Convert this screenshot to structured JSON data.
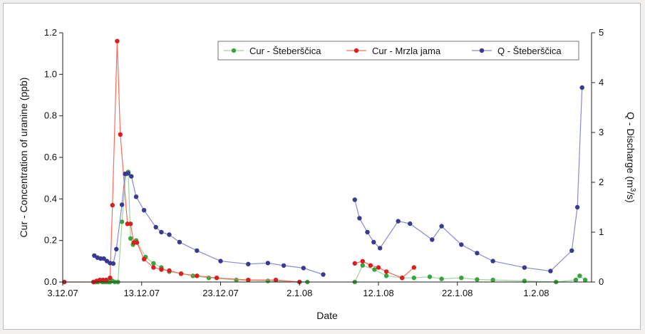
{
  "chart_data": {
    "type": "line",
    "title": "",
    "xlabel": "Date",
    "ylabel_left": "Cur - Concentration of uranine (ppb)",
    "ylabel_right_base": "Q - Discharge (m",
    "ylabel_right_sup": "3",
    "ylabel_right_tail": "/s)",
    "x_tick_labels": [
      "3.12.07",
      "13.12.07",
      "23.12.07",
      "2.1.08",
      "12.1.08",
      "22.1.08",
      "1.2.08"
    ],
    "x_tick_days": [
      0,
      10,
      20,
      30,
      40,
      50,
      60
    ],
    "x_start_date": "3.12.07",
    "xlim_days": [
      0,
      67
    ],
    "ylim_left": [
      0,
      1.2
    ],
    "y_left_ticks": [
      "0.0",
      "0.2",
      "0.4",
      "0.6",
      "0.8",
      "1.0",
      "1.2"
    ],
    "ylim_right": [
      0,
      5
    ],
    "y_right_ticks": [
      "0",
      "1",
      "2",
      "3",
      "4",
      "5"
    ],
    "grid": false,
    "legend_position": "top-right",
    "series": [
      {
        "name": "Cur - Šteberščica",
        "axis": "left",
        "color": "#3aa43a",
        "line_color": "#9ed49e",
        "marker": "circle",
        "segments": [
          [
            [
              3.9,
              0.0
            ],
            [
              4.2,
              0.0
            ],
            [
              4.5,
              0.0
            ],
            [
              5.0,
              0.0
            ],
            [
              5.2,
              0.0
            ],
            [
              5.5,
              0.0
            ],
            [
              5.8,
              0.0
            ],
            [
              6.0,
              0.0
            ],
            [
              6.3,
              0.005
            ],
            [
              6.6,
              0.0
            ],
            [
              7.0,
              0.0
            ],
            [
              7.5,
              0.29
            ],
            [
              8.0,
              0.52
            ],
            [
              8.3,
              0.53
            ],
            [
              8.6,
              0.21
            ],
            [
              8.9,
              0.18
            ],
            [
              9.3,
              0.2
            ],
            [
              10.5,
              0.12
            ],
            [
              11.5,
              0.09
            ],
            [
              12.5,
              0.07
            ],
            [
              13.5,
              0.05
            ],
            [
              15.0,
              0.04
            ],
            [
              16.5,
              0.03
            ],
            [
              18.5,
              0.02
            ],
            [
              22.0,
              0.01
            ],
            [
              26.0,
              0.005
            ],
            [
              31.0,
              0.0
            ]
          ],
          [
            [
              37.0,
              0.0
            ],
            [
              38.0,
              0.08
            ],
            [
              39.5,
              0.06
            ],
            [
              41.0,
              0.03
            ],
            [
              43.0,
              0.02
            ],
            [
              44.5,
              0.02
            ],
            [
              46.5,
              0.025
            ],
            [
              48.0,
              0.015
            ],
            [
              50.5,
              0.02
            ],
            [
              52.5,
              0.012
            ],
            [
              54.5,
              0.01
            ],
            [
              58.5,
              0.005
            ],
            [
              62.5,
              0.0
            ],
            [
              65.0,
              0.01
            ],
            [
              65.5,
              0.03
            ],
            [
              66.2,
              0.01
            ]
          ]
        ]
      },
      {
        "name": "Cur - Mrzla jama",
        "axis": "left",
        "color": "#d62020",
        "line_color": "#ff6a5a",
        "marker": "circle",
        "segments": [
          [
            [
              0.2,
              0.0
            ],
            [
              3.9,
              0.0
            ],
            [
              4.3,
              0.005
            ],
            [
              4.7,
              0.01
            ],
            [
              5.1,
              0.01
            ],
            [
              5.5,
              0.01
            ],
            [
              6.0,
              0.02
            ],
            [
              6.3,
              0.37
            ],
            [
              6.9,
              1.16
            ],
            [
              7.3,
              0.71
            ],
            [
              8.2,
              0.28
            ],
            [
              8.6,
              0.28
            ],
            [
              9.0,
              0.19
            ],
            [
              9.4,
              0.19
            ],
            [
              10.3,
              0.11
            ],
            [
              11.5,
              0.07
            ],
            [
              12.5,
              0.06
            ],
            [
              13.5,
              0.055
            ],
            [
              15.0,
              0.04
            ],
            [
              17.0,
              0.03
            ],
            [
              19.5,
              0.02
            ],
            [
              23.5,
              0.01
            ],
            [
              27.0,
              0.01
            ],
            [
              30.0,
              0.0
            ]
          ],
          [
            [
              37.0,
              0.09
            ],
            [
              38.0,
              0.1
            ],
            [
              39.0,
              0.08
            ],
            [
              40.0,
              0.07
            ],
            [
              41.0,
              0.05
            ],
            [
              43.0,
              0.02
            ],
            [
              44.5,
              0.07
            ]
          ]
        ]
      },
      {
        "name": "Q - Šteberščica",
        "axis": "right",
        "color": "#3a3a90",
        "line_color": "#8888d8",
        "marker": "circle",
        "segments": [
          [
            [
              4.0,
              0.53
            ],
            [
              4.4,
              0.49
            ],
            [
              4.8,
              0.47
            ],
            [
              5.2,
              0.47
            ],
            [
              5.6,
              0.42
            ],
            [
              6.0,
              0.38
            ],
            [
              6.4,
              0.37
            ],
            [
              6.8,
              0.66
            ],
            [
              7.5,
              1.55
            ],
            [
              7.9,
              2.17
            ],
            [
              8.3,
              2.18
            ],
            [
              8.7,
              2.12
            ],
            [
              9.3,
              1.71
            ],
            [
              10.3,
              1.44
            ],
            [
              11.8,
              1.1
            ],
            [
              12.5,
              1.0
            ],
            [
              13.5,
              0.95
            ],
            [
              14.8,
              0.8
            ],
            [
              17.0,
              0.63
            ],
            [
              20.0,
              0.42
            ],
            [
              23.5,
              0.36
            ],
            [
              26.0,
              0.38
            ],
            [
              28.0,
              0.33
            ],
            [
              30.5,
              0.28
            ],
            [
              33.0,
              0.15
            ]
          ],
          [
            [
              37.0,
              1.65
            ],
            [
              37.6,
              1.28
            ],
            [
              38.6,
              1.0
            ],
            [
              39.4,
              0.8
            ],
            [
              40.2,
              0.68
            ],
            [
              42.5,
              1.22
            ],
            [
              44.0,
              1.17
            ],
            [
              46.8,
              0.85
            ],
            [
              48.0,
              1.12
            ],
            [
              50.5,
              0.75
            ],
            [
              52.5,
              0.58
            ],
            [
              54.5,
              0.42
            ],
            [
              58.5,
              0.29
            ],
            [
              61.8,
              0.22
            ],
            [
              64.5,
              0.63
            ],
            [
              65.2,
              1.5
            ],
            [
              65.8,
              3.9
            ]
          ]
        ]
      }
    ]
  }
}
